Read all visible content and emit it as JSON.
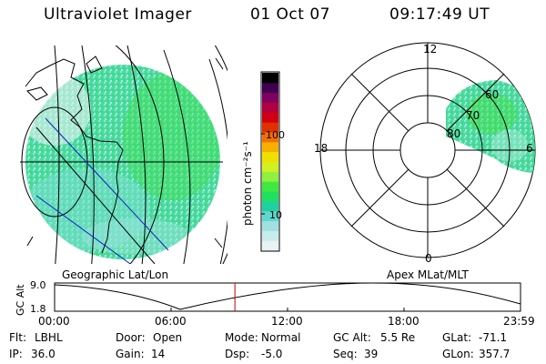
{
  "header": {
    "instrument": "Ultraviolet Imager",
    "date": "01 Oct 07",
    "time": "09:17:49 UT"
  },
  "colorbar": {
    "unit_label": "photon cm⁻²s⁻¹",
    "ticks": [
      "100",
      "10"
    ],
    "colors": [
      "#e8f4f4",
      "#c8ecec",
      "#a0e0e0",
      "#60d8d0",
      "#20d0a0",
      "#20e060",
      "#40e840",
      "#90f040",
      "#d0f020",
      "#f0e000",
      "#f8b000",
      "#f07000",
      "#e03000",
      "#d00010",
      "#b00040",
      "#800060",
      "#400050",
      "#000000"
    ]
  },
  "geo_map": {
    "label": "Geographic Lat/Lon",
    "fill_color": "#58dca0"
  },
  "polar_plot": {
    "label": "Apex MLat/MLT",
    "mlt_labels": {
      "top": "12",
      "left": "18",
      "right": "6",
      "bottom": "0"
    },
    "lat_labels": [
      "60",
      "70",
      "80"
    ]
  },
  "timeline": {
    "ylabel": "GC Alt",
    "ymax": "9.0",
    "ymin": "1.8",
    "ticks": [
      "00:00",
      "06:00",
      "12:00",
      "18:00",
      "23:59"
    ],
    "current_fraction": 0.387,
    "marker_color": "#c00000"
  },
  "info": {
    "flt_label": "Flt:",
    "flt_value": "LBHL",
    "ip_label": "IP:",
    "ip_value": "36.0",
    "door_label": "Door:",
    "door_value": "Open",
    "gain_label": "Gain:",
    "gain_value": "14",
    "mode_label": "Mode:",
    "mode_value": "Normal",
    "dsp_label": "Dsp:",
    "dsp_value": "-5.0",
    "gcalt_label": "GC Alt:",
    "gcalt_value": "5.5 Re",
    "seq_label": "Seq:",
    "seq_value": "39",
    "glat_label": "GLat:",
    "glat_value": "-71.1",
    "glon_label": "GLon:",
    "glon_value": "357.7"
  }
}
